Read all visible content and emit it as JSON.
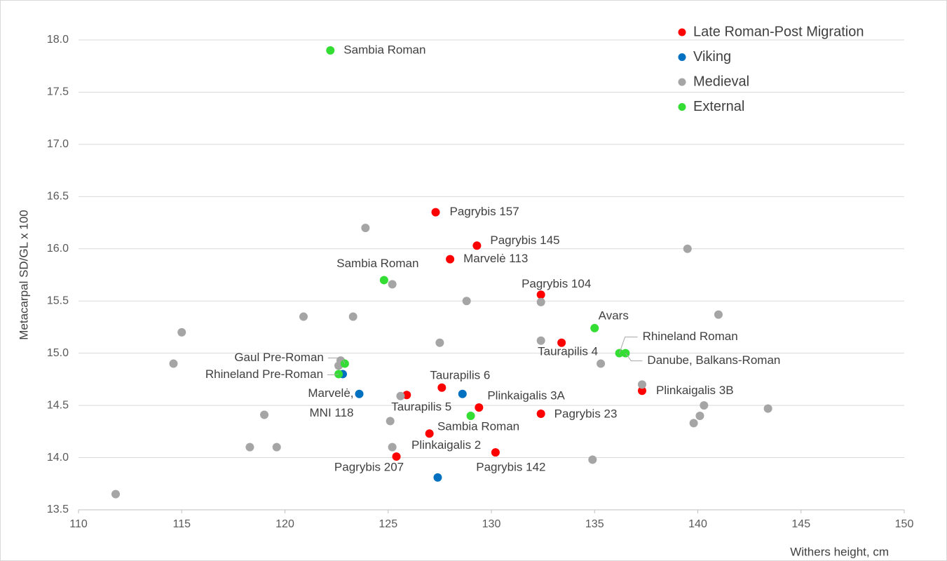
{
  "chart_data": {
    "type": "scatter",
    "xlabel": "Withers height, cm",
    "ylabel": "Metacarpal SD/GL x 100",
    "xlim": [
      110,
      150
    ],
    "ylim": [
      13.5,
      18.0
    ],
    "xticks": [
      110,
      115,
      120,
      125,
      130,
      135,
      140,
      145,
      150
    ],
    "yticks": [
      13.5,
      {
        "value": 14.0,
        "label": "14.0"
      },
      14.5,
      {
        "value": 15.0,
        "label": "15.0"
      },
      15.5,
      {
        "value": 16.0,
        "label": "16.0"
      },
      16.5,
      {
        "value": 17.0,
        "label": "17.0"
      },
      17.5,
      {
        "value": 18.0,
        "label": "18.0"
      }
    ],
    "grid": true,
    "legend": "upper right",
    "series": [
      {
        "name": "Late Roman-Post Migration",
        "color": "#ff0000",
        "x": [
          127.3,
          129.3,
          128.0,
          132.4,
          133.4,
          137.3,
          127.6,
          125.9,
          129.4,
          132.4,
          127.0,
          130.2,
          125.4
        ],
        "values": [
          16.35,
          16.03,
          15.9,
          15.56,
          15.1,
          14.64,
          14.67,
          14.6,
          14.48,
          14.42,
          14.23,
          14.05,
          14.01
        ],
        "labels": [
          "Pagrybis 157",
          "Pagrybis 145",
          "Marvelė 113",
          "Pagrybis 104",
          "Taurapilis 4",
          "Plinkaigalis 3B",
          "Taurapilis 6",
          "Taurapilis 5",
          "Plinkaigalis 3A",
          "Pagrybis 23",
          "Plinkaigalis  2",
          "Pagrybis 142",
          "Pagrybis 207"
        ]
      },
      {
        "name": "Viking",
        "color": "#0070c0",
        "x": [
          122.8,
          123.6,
          128.6,
          127.4
        ],
        "values": [
          14.8,
          14.61,
          14.61,
          13.81
        ],
        "labels": [
          null,
          [
            "Marvelė,",
            "MNI 118"
          ],
          null,
          null
        ]
      },
      {
        "name": "Medieval",
        "color": "#a5a5a5",
        "x": [
          111.8,
          114.6,
          115.0,
          119.0,
          118.3,
          119.6,
          120.9,
          123.3,
          123.9,
          125.2,
          122.7,
          122.6,
          125.6,
          125.1,
          125.2,
          127.5,
          128.8,
          132.4,
          132.4,
          135.3,
          134.9,
          137.3,
          139.5,
          141.0,
          140.3,
          140.1,
          139.8,
          143.4
        ],
        "values": [
          13.65,
          14.9,
          15.2,
          14.41,
          14.1,
          14.1,
          15.35,
          15.35,
          16.2,
          15.66,
          14.93,
          14.88,
          14.59,
          14.35,
          14.1,
          15.1,
          15.5,
          15.49,
          15.12,
          14.9,
          13.98,
          14.7,
          16.0,
          15.37,
          14.5,
          14.4,
          14.33,
          14.47
        ]
      },
      {
        "name": "External",
        "color": "#33dd33",
        "x": [
          122.2,
          124.8,
          135.0,
          136.2,
          136.5,
          122.9,
          122.6,
          129.0
        ],
        "values": [
          17.9,
          15.7,
          15.24,
          15.0,
          15.0,
          14.9,
          14.8,
          14.4
        ],
        "labels": [
          "Sambia Roman",
          "Sambia Roman",
          "Avars",
          "Rhineland Roman",
          "Danube, Balkans-Roman",
          "Gaul Pre-Roman",
          "Rhineland Pre-Roman",
          "Sambia Roman"
        ]
      }
    ]
  }
}
